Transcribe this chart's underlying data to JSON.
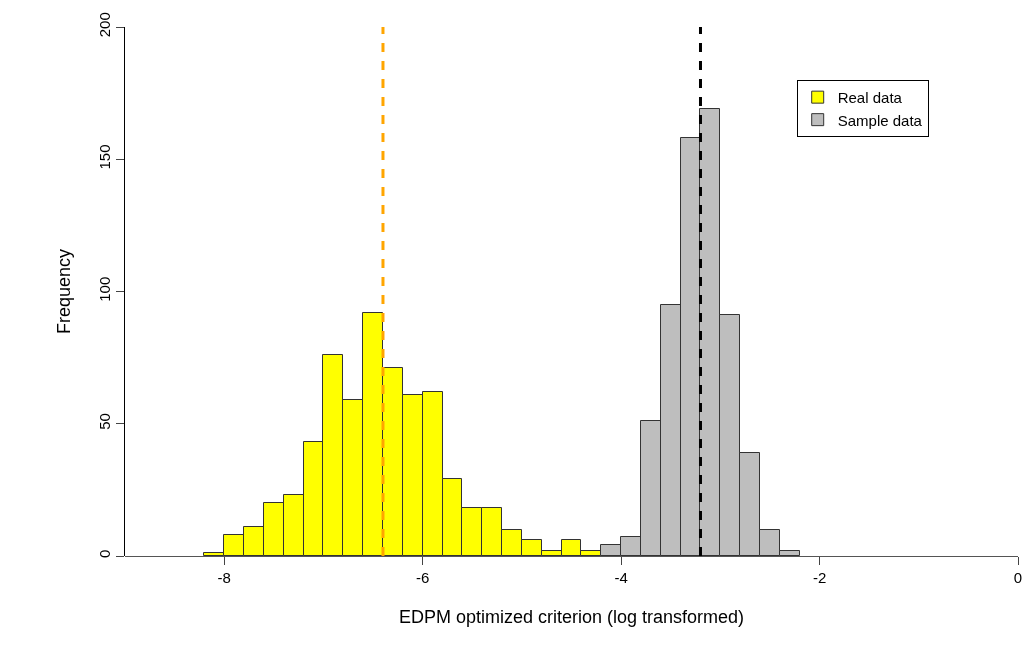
{
  "chart_data": {
    "type": "histogram",
    "xlabel": "EDPM optimized criterion (log transformed)",
    "ylabel": "Frequency",
    "bins": [
      -8.2,
      -8.0,
      -7.8,
      -7.6,
      -7.4,
      -7.2,
      -7.0,
      -6.8,
      -6.6,
      -6.4,
      -6.2,
      -6.0,
      -5.8,
      -5.6,
      -5.4,
      -5.2,
      -5.0,
      -4.8,
      -4.6,
      -4.4,
      -4.2,
      -4.0,
      -3.8,
      -3.6,
      -3.4,
      -3.2,
      -3.0,
      -2.8,
      -2.6,
      -2.4,
      -2.2
    ],
    "series": [
      {
        "name": "Real data",
        "color": "#ffff00",
        "values": [
          1,
          8,
          11,
          20,
          23,
          43,
          76,
          59,
          92,
          71,
          61,
          62,
          29,
          18,
          18,
          10,
          6,
          2,
          6,
          2,
          null,
          null,
          null,
          null,
          null,
          null,
          null,
          null,
          null,
          null
        ]
      },
      {
        "name": "Sample data",
        "color": "#bebebe",
        "values": [
          null,
          null,
          null,
          null,
          null,
          null,
          null,
          null,
          null,
          null,
          null,
          null,
          null,
          null,
          null,
          null,
          null,
          null,
          null,
          null,
          4,
          7,
          51,
          95,
          158,
          169,
          91,
          39,
          10,
          2
        ]
      }
    ],
    "xlim": [
      -9,
      0
    ],
    "xticks": [
      -8,
      -6,
      -4,
      -2,
      0
    ],
    "ylim": [
      0,
      200
    ],
    "yticks": [
      0,
      50,
      100,
      150,
      200
    ],
    "ref_lines": [
      {
        "axis": "x",
        "value": -6.4,
        "color": "#ffa500",
        "line_style": "dashed"
      },
      {
        "axis": "x",
        "value": -3.2,
        "color": "#000000",
        "line_style": "dashed"
      }
    ],
    "grid": false,
    "legend": "top right"
  }
}
